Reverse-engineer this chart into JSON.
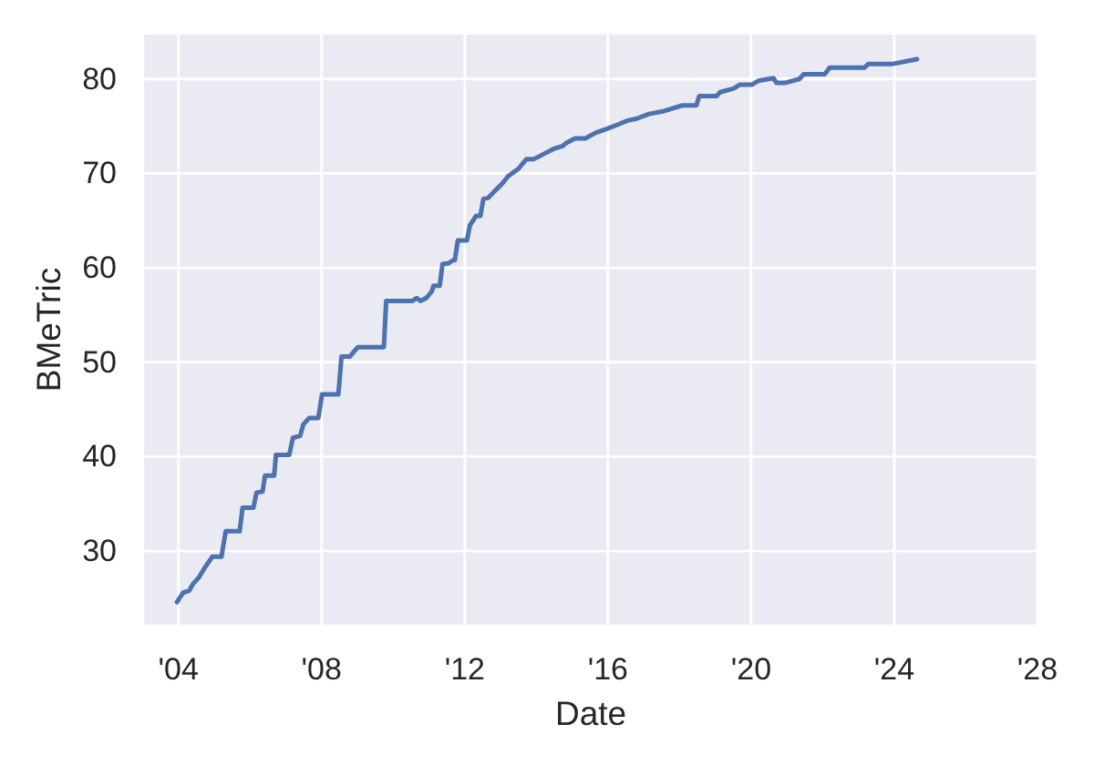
{
  "chart_data": {
    "type": "line",
    "xlabel": "Date",
    "ylabel": "BMeTric",
    "x": [
      "2003-12-17",
      "2004-02-18",
      "2004-04-19",
      "2004-05-27",
      "2004-07-27",
      "2004-09-29",
      "2004-12-12",
      "2005-03-15",
      "2005-04-27",
      "2005-09-17",
      "2005-10-16",
      "2006-02-04",
      "2006-03-08",
      "2006-05-08",
      "2006-06-03",
      "2006-09-04",
      "2006-09-22",
      "2007-02-05",
      "2007-03-14",
      "2007-05-27",
      "2007-06-28",
      "2007-08-28",
      "2007-11-29",
      "2008-01-05",
      "2008-06-20",
      "2008-07-22",
      "2008-10-15",
      "2008-11-16",
      "2009-01-05",
      "2009-09-27",
      "2009-10-21",
      "2010-07-16",
      "2010-08-28",
      "2010-10-04",
      "2010-12-04",
      "2011-01-29",
      "2011-02-16",
      "2011-04-20",
      "2011-05-19",
      "2011-07-22",
      "2011-09-03",
      "2011-09-21",
      "2011-10-22",
      "2012-01-23",
      "2012-02-22",
      "2012-04-25",
      "2012-06-08",
      "2012-07-09",
      "2012-08-26",
      "2012-10-29",
      "2013-01-16",
      "2013-03-18",
      "2013-07-02",
      "2013-09-20",
      "2013-12-03",
      "2014-03-25",
      "2014-06-26",
      "2014-09-27",
      "2014-10-28",
      "2015-01-29",
      "2015-05-15",
      "2015-08-27",
      "2015-12-16",
      "2016-04-18",
      "2016-07-20",
      "2016-10-21",
      "2017-02-23",
      "2017-07-27",
      "2018-01-29",
      "2018-06-21",
      "2018-07-20",
      "2019-01-16",
      "2019-02-17",
      "2019-07-08",
      "2019-09-09",
      "2020-01-10",
      "2020-03-13",
      "2020-08-15",
      "2020-09-15",
      "2020-12-17",
      "2021-05-07",
      "2021-06-20",
      "2022-01-21",
      "2022-03-13",
      "2023-03-01",
      "2023-04-12",
      "2023-12-17",
      "2024-08-20"
    ],
    "series": [
      {
        "color": "#4c72b0",
        "values": [
          24.6,
          25.6,
          25.8,
          26.5,
          27.2,
          28.3,
          29.4,
          29.4,
          32.1,
          32.1,
          34.6,
          34.6,
          36.2,
          36.3,
          38.0,
          38.0,
          40.2,
          40.2,
          42.0,
          42.2,
          43.4,
          44.1,
          44.1,
          46.6,
          46.6,
          50.6,
          50.6,
          51.0,
          51.6,
          51.6,
          56.5,
          56.5,
          56.8,
          56.5,
          56.8,
          57.5,
          58.1,
          58.1,
          60.4,
          60.5,
          60.8,
          60.8,
          62.9,
          62.9,
          64.5,
          65.5,
          65.5,
          67.3,
          67.4,
          68.1,
          68.9,
          69.7,
          70.5,
          71.5,
          71.5,
          72.1,
          72.6,
          72.9,
          73.2,
          73.7,
          73.7,
          74.3,
          74.7,
          75.2,
          75.6,
          75.8,
          76.3,
          76.6,
          77.2,
          77.2,
          78.2,
          78.2,
          78.6,
          79.0,
          79.4,
          79.4,
          79.8,
          80.1,
          79.6,
          79.6,
          80.0,
          80.5,
          80.5,
          81.2,
          81.2,
          81.6,
          81.6,
          82.1
        ]
      }
    ],
    "xlim": [
      "2003-01-15",
      "2028-01-01"
    ],
    "ylim": [
      22.2,
      84.7
    ],
    "xticks": [
      {
        "value": "2004",
        "label": "'04"
      },
      {
        "value": "2008",
        "label": "'08"
      },
      {
        "value": "2012",
        "label": "'12"
      },
      {
        "value": "2016",
        "label": "'16"
      },
      {
        "value": "2020",
        "label": "'20"
      },
      {
        "value": "2024",
        "label": "'24"
      },
      {
        "value": "2028",
        "label": "'28"
      }
    ],
    "yticks": [
      30,
      40,
      50,
      60,
      70,
      80
    ],
    "grid": true
  }
}
